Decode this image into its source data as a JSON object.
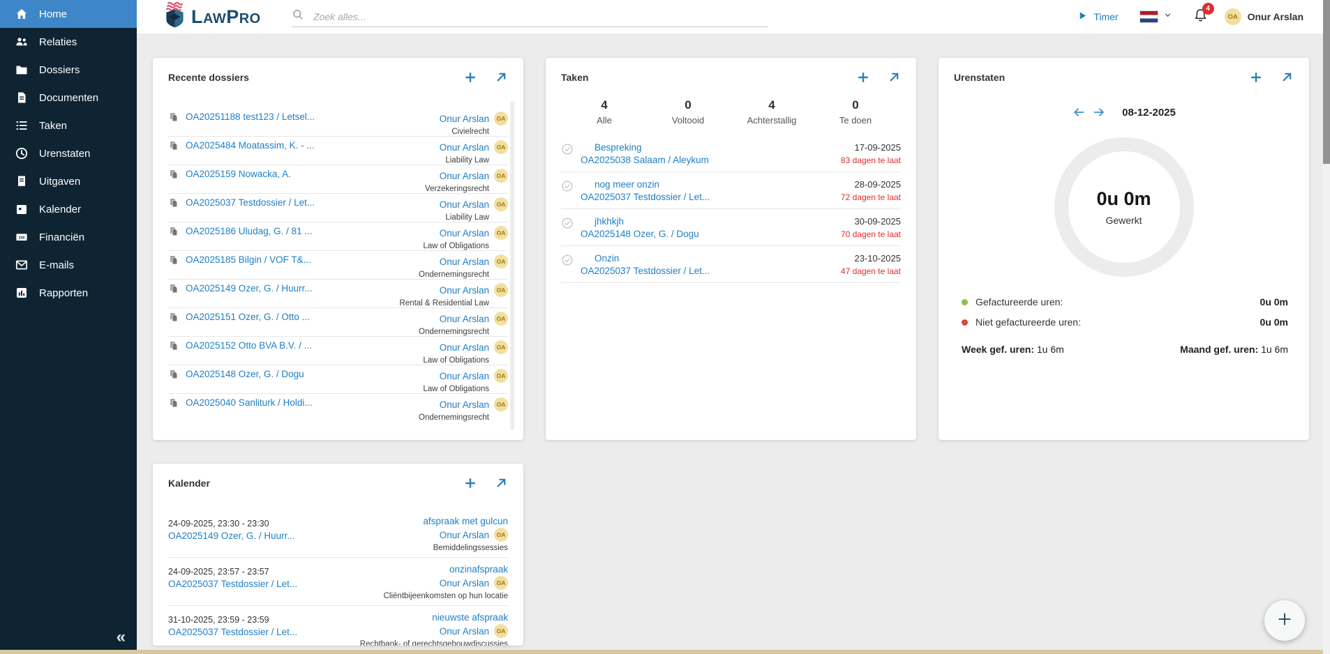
{
  "app": {
    "logo_l": "L",
    "logo_aw": "AW",
    "logo_p": "P",
    "logo_ro": "RO"
  },
  "header": {
    "search_placeholder": "Zoek alles...",
    "timer_label": "Timer",
    "notification_count": "4",
    "user_name": "Onur Arslan",
    "user_initials": "OA"
  },
  "sidebar": {
    "collapse_glyph": "«",
    "items": [
      {
        "label": "Home",
        "icon": "home-icon",
        "active": true
      },
      {
        "label": "Relaties",
        "icon": "relations-icon"
      },
      {
        "label": "Dossiers",
        "icon": "dossiers-icon"
      },
      {
        "label": "Documenten",
        "icon": "documents-icon"
      },
      {
        "label": "Taken",
        "icon": "tasks-icon"
      },
      {
        "label": "Urenstaten",
        "icon": "timesheets-icon"
      },
      {
        "label": "Uitgaven",
        "icon": "expenses-icon"
      },
      {
        "label": "Kalender",
        "icon": "calendar-icon"
      },
      {
        "label": "Financiën",
        "icon": "finances-icon"
      },
      {
        "label": "E-mails",
        "icon": "emails-icon"
      },
      {
        "label": "Rapporten",
        "icon": "reports-icon"
      }
    ]
  },
  "dossiers_card": {
    "title": "Recente dossiers",
    "items": [
      {
        "code": "OA20251188 test123 / Letsel...",
        "owner": "Onur Arslan",
        "initials": "OA",
        "category": "Civielrecht"
      },
      {
        "code": "OA2025484 Moatassim, K. - ...",
        "owner": "Onur Arslan",
        "initials": "OA",
        "category": "Liability Law"
      },
      {
        "code": "OA2025159 Nowacka, A.",
        "owner": "Onur Arslan",
        "initials": "OA",
        "category": "Verzekeringsrecht"
      },
      {
        "code": "OA2025037 Testdossier / Let...",
        "owner": "Onur Arslan",
        "initials": "OA",
        "category": "Liability Law"
      },
      {
        "code": "OA2025186 Uludag, G. / 81 ...",
        "owner": "Onur Arslan",
        "initials": "OA",
        "category": "Law of Obligations"
      },
      {
        "code": "OA2025185 Bilgin / VOF T&...",
        "owner": "Onur Arslan",
        "initials": "OA",
        "category": "Ondernemingsrecht"
      },
      {
        "code": "OA2025149 Ozer, G. / Huurr...",
        "owner": "Onur Arslan",
        "initials": "OA",
        "category": "Rental & Residential Law"
      },
      {
        "code": "OA2025151 Ozer, G. / Otto ...",
        "owner": "Onur Arslan",
        "initials": "OA",
        "category": "Ondernemingsrecht"
      },
      {
        "code": "OA2025152 Otto BVA B.V. / ...",
        "owner": "Onur Arslan",
        "initials": "OA",
        "category": "Law of Obligations"
      },
      {
        "code": "OA2025148 Ozer, G. / Dogu",
        "owner": "Onur Arslan",
        "initials": "OA",
        "category": "Law of Obligations"
      },
      {
        "code": "OA2025040 Sanliturk / Holdi...",
        "owner": "Onur Arslan",
        "initials": "OA",
        "category": "Ondernemingsrecht"
      }
    ]
  },
  "tasks_card": {
    "title": "Taken",
    "stats": [
      {
        "value": "4",
        "label": "Alle"
      },
      {
        "value": "0",
        "label": "Voltooid"
      },
      {
        "value": "4",
        "label": "Achterstallig"
      },
      {
        "value": "0",
        "label": "Te doen"
      }
    ],
    "items": [
      {
        "title": "Bespreking",
        "dossier": "OA2025038 Salaam / Aleykum",
        "date": "17-09-2025",
        "overdue": "83 dagen te laat"
      },
      {
        "title": "nog meer onzin",
        "dossier": "OA2025037 Testdossier / Let...",
        "date": "28-09-2025",
        "overdue": "72 dagen te laat"
      },
      {
        "title": "jhkhkjh",
        "dossier": "OA2025148 Ozer, G. / Dogu",
        "date": "30-09-2025",
        "overdue": "70 dagen te laat"
      },
      {
        "title": "Onzin",
        "dossier": "OA2025037 Testdossier / Let...",
        "date": "23-10-2025",
        "overdue": "47 dagen te laat"
      }
    ]
  },
  "hours_card": {
    "title": "Urenstaten",
    "date": "08-12-2025",
    "worked_value": "0u 0m",
    "worked_label": "Gewerkt",
    "rows": [
      {
        "label": "Gefactureerde uren:",
        "value": "0u 0m",
        "color": "#8bc34a"
      },
      {
        "label": "Niet gefactureerde uren:",
        "value": "0u 0m",
        "color": "#e0453f"
      }
    ],
    "week_label": "Week gef. uren:",
    "week_value": "1u 6m",
    "month_label": "Maand gef. uren:",
    "month_value": "1u 6m"
  },
  "calendar_card": {
    "title": "Kalender",
    "items": [
      {
        "datetime": "24-09-2025, 23:30 - 23:30",
        "dossier": "OA2025149 Ozer, G. / Huurr...",
        "event": "afspraak met gulcun",
        "owner": "Onur Arslan",
        "initials": "OA",
        "category": "Bemiddelingssessies"
      },
      {
        "datetime": "24-09-2025, 23:57 - 23:57",
        "dossier": "OA2025037 Testdossier / Let...",
        "event": "onzinafspraak",
        "owner": "Onur Arslan",
        "initials": "OA",
        "category": "Cliëntbijeenkomsten op hun locatie"
      },
      {
        "datetime": "31-10-2025, 23:59 - 23:59",
        "dossier": "OA2025037 Testdossier / Let...",
        "event": "nieuwste afspraak",
        "owner": "Onur Arslan",
        "initials": "OA",
        "category": "Rechtbank- of gerechtsgebouwdiscussies"
      }
    ]
  },
  "colors": {
    "accent": "#1d7fc4",
    "sidebar_bg": "#0e2433",
    "active_item": "#3d87c8",
    "overdue_red": "#e02d2d",
    "badge_bg": "#f2dfa0",
    "badge_text": "#9c7c16",
    "bottom_strip": "#d8c89c"
  }
}
